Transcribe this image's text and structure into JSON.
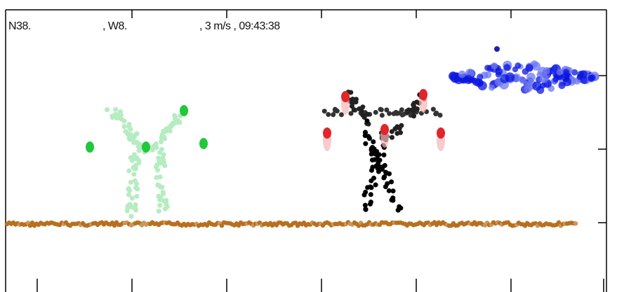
{
  "status": {
    "latitude": "N38.",
    "longitude": ", W8.",
    "info": ", 3 m/s , 09:43:38"
  }
}
